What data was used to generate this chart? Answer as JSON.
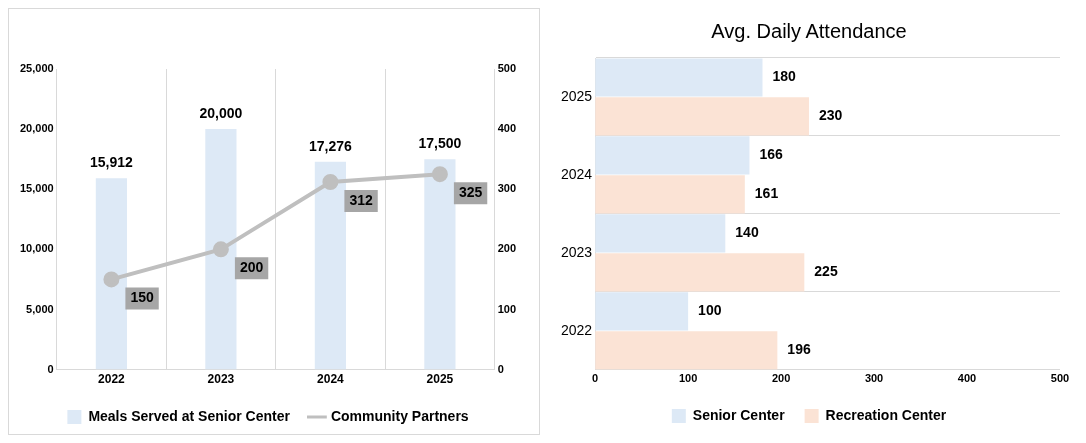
{
  "chart_data": [
    {
      "type": "bar",
      "categories": [
        "2022",
        "2023",
        "2024",
        "2025"
      ],
      "series": [
        {
          "name": "Meals Served at Senior Center",
          "color": "#dde9f6",
          "values": [
            15912,
            20000,
            17276,
            17500
          ],
          "value_labels": [
            "15,912",
            "20,000",
            "17,276",
            "17,500"
          ]
        },
        {
          "name": "Community Partners",
          "type": "line",
          "axis": "y2",
          "color": "#bfbfbf",
          "marker": "circle",
          "values": [
            150,
            200,
            312,
            325
          ],
          "value_labels": [
            "150",
            "200",
            "312",
            "325"
          ]
        }
      ],
      "ylim": [
        0,
        25000
      ],
      "yticks": [
        0,
        {
          "value": 5000,
          "label": "5,000"
        },
        {
          "value": 10000,
          "label": "10,000"
        },
        {
          "value": 15000,
          "label": "15,000"
        },
        {
          "value": 20000,
          "label": "20,000"
        },
        {
          "value": 25000,
          "label": "25,000"
        }
      ],
      "y2lim": [
        0,
        500
      ],
      "y2ticks": [
        0,
        100,
        200,
        300,
        400,
        500
      ],
      "grid": "x",
      "legend": "bottom"
    },
    {
      "type": "bar",
      "title": "Avg. Daily Attendance",
      "orientation": "horizontal",
      "categories": [
        "2025",
        "2024",
        "2023",
        "2022"
      ],
      "series": [
        {
          "name": "Senior Center",
          "color": "#dde9f6",
          "values": [
            180,
            166,
            140,
            100
          ]
        },
        {
          "name": "Recreation Center",
          "color": "#fbe3d5",
          "values": [
            230,
            161,
            225,
            196
          ]
        }
      ],
      "xlim": [
        0,
        500
      ],
      "xticks": [
        0,
        100,
        200,
        300,
        400,
        500
      ],
      "grid": "y",
      "legend": "bottom",
      "data_labels": true
    }
  ]
}
